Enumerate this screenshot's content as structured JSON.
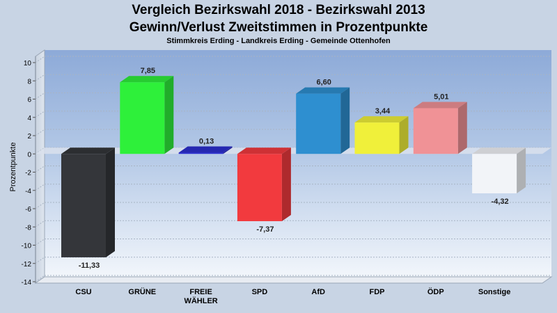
{
  "chart_data": {
    "type": "bar",
    "title": "Vergleich Bezirkswahl 2018 - Bezirkswahl 2013",
    "subtitle_line": "Gewinn/Verlust Zweitstimmen in Prozentpunkte",
    "subtitle": "Stimmkreis Erding - Landkreis Erding - Gemeinde Ottenhofen",
    "ylabel": "Prozentpunkte",
    "xlabel": "",
    "ylim": [
      -14,
      10
    ],
    "yticks": [
      10,
      8,
      6,
      4,
      2,
      0,
      -2,
      -4,
      -6,
      -8,
      -10,
      -12,
      -14
    ],
    "grid": true,
    "categories": [
      [
        "CSU"
      ],
      [
        "GRÜNE"
      ],
      [
        "FREIE",
        "WÄHLER"
      ],
      [
        "SPD"
      ],
      [
        "AfD"
      ],
      [
        "FDP"
      ],
      [
        "ÖDP"
      ],
      [
        "Sonstige"
      ]
    ],
    "values": [
      -11.33,
      7.85,
      0.13,
      -7.37,
      6.6,
      3.44,
      5.01,
      -4.32
    ],
    "value_labels": [
      "-11,33",
      "7,85",
      "0,13",
      "-7,37",
      "6,60",
      "3,44",
      "5,01",
      "-4,32"
    ],
    "colors": [
      "#34363a",
      "#2ef03a",
      "#2b2fd0",
      "#f23a3e",
      "#2e8fd0",
      "#f0f03a",
      "#f09296",
      "#f2f4f8"
    ]
  }
}
